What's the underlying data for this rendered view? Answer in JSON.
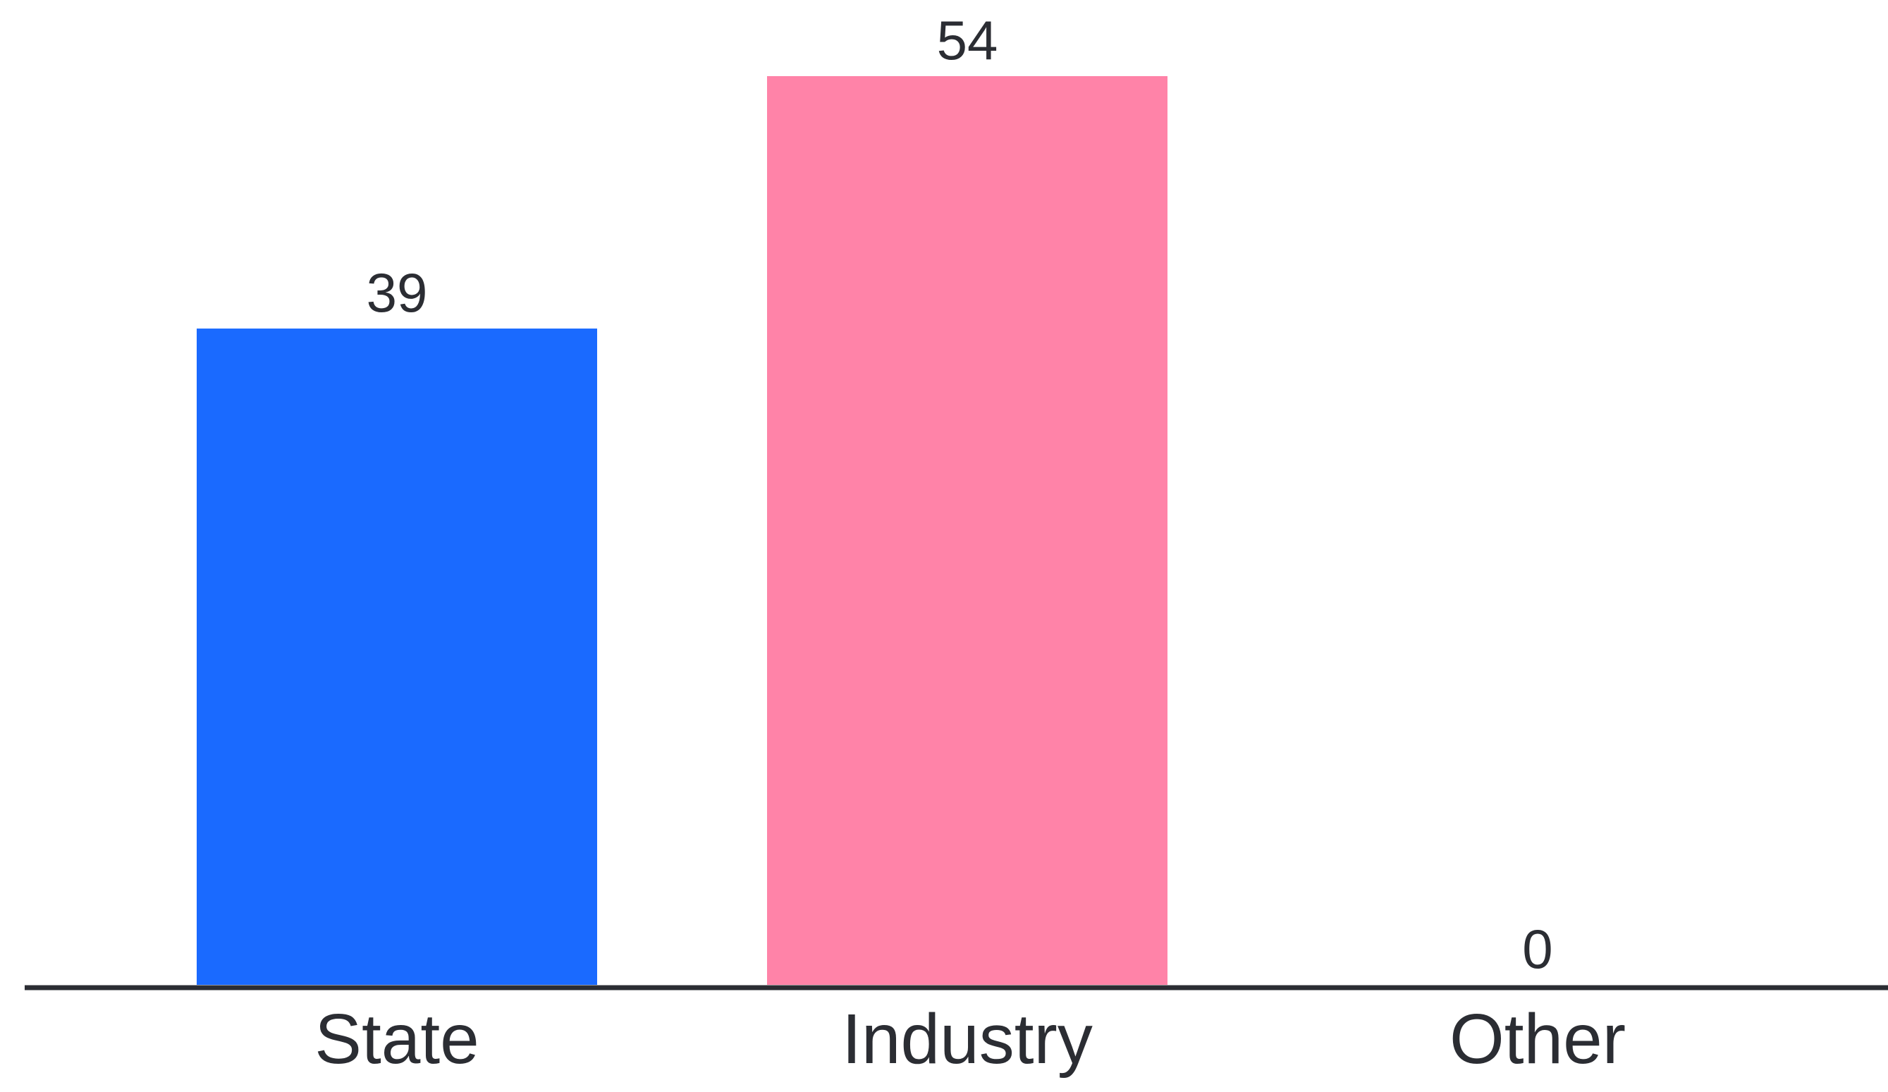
{
  "chart_data": {
    "type": "bar",
    "title": "",
    "xlabel": "",
    "ylabel": "",
    "categories": [
      "State",
      "Industry",
      "Other"
    ],
    "values": [
      39,
      54,
      0
    ],
    "value_labels": [
      "39",
      "54",
      "0"
    ],
    "colors": [
      "#1a6aff",
      "#ff83a8",
      "#1a6aff"
    ],
    "axis_color": "#2b2d33",
    "ylim": [
      0,
      54
    ],
    "grid": false,
    "legend": "none"
  }
}
